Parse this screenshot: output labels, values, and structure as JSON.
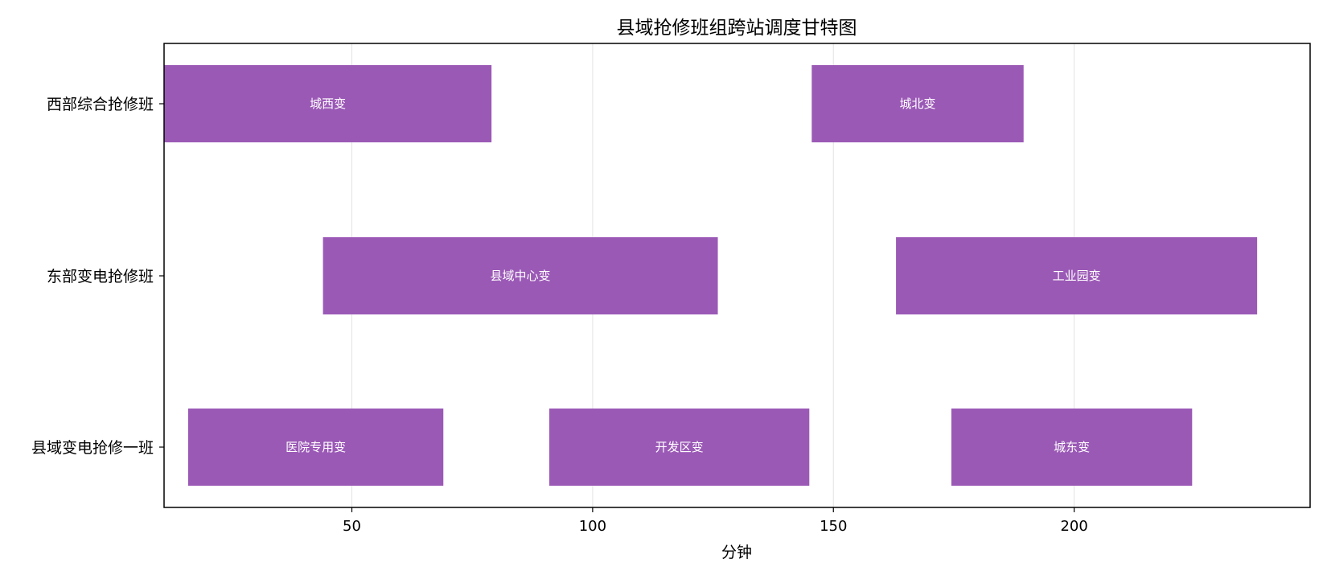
{
  "chart_data": {
    "type": "gantt",
    "title": "县域抢修班组跨站调度甘特图",
    "xlabel": "分钟",
    "ylabel": "",
    "xlim": [
      11,
      249
    ],
    "xticks": [
      50,
      100,
      150,
      200
    ],
    "grid": "vertical",
    "bar_color": "#9B59B6",
    "categories": [
      "西部综合抢修班",
      "东部变电抢修班",
      "县域变电抢修一班"
    ],
    "tasks": [
      {
        "team": "西部综合抢修班",
        "station": "城西变",
        "start": 11,
        "end": 79
      },
      {
        "team": "西部综合抢修班",
        "station": "城北变",
        "start": 145.5,
        "end": 189.5
      },
      {
        "team": "东部变电抢修班",
        "station": "县域中心变",
        "start": 44,
        "end": 126
      },
      {
        "team": "东部变电抢修班",
        "station": "工业园变",
        "start": 163,
        "end": 238
      },
      {
        "team": "县域变电抢修一班",
        "station": "医院专用变",
        "start": 16,
        "end": 69
      },
      {
        "team": "县域变电抢修一班",
        "station": "开发区变",
        "start": 91,
        "end": 145
      },
      {
        "team": "县域变电抢修一班",
        "station": "城东变",
        "start": 174.5,
        "end": 224.5
      }
    ]
  }
}
